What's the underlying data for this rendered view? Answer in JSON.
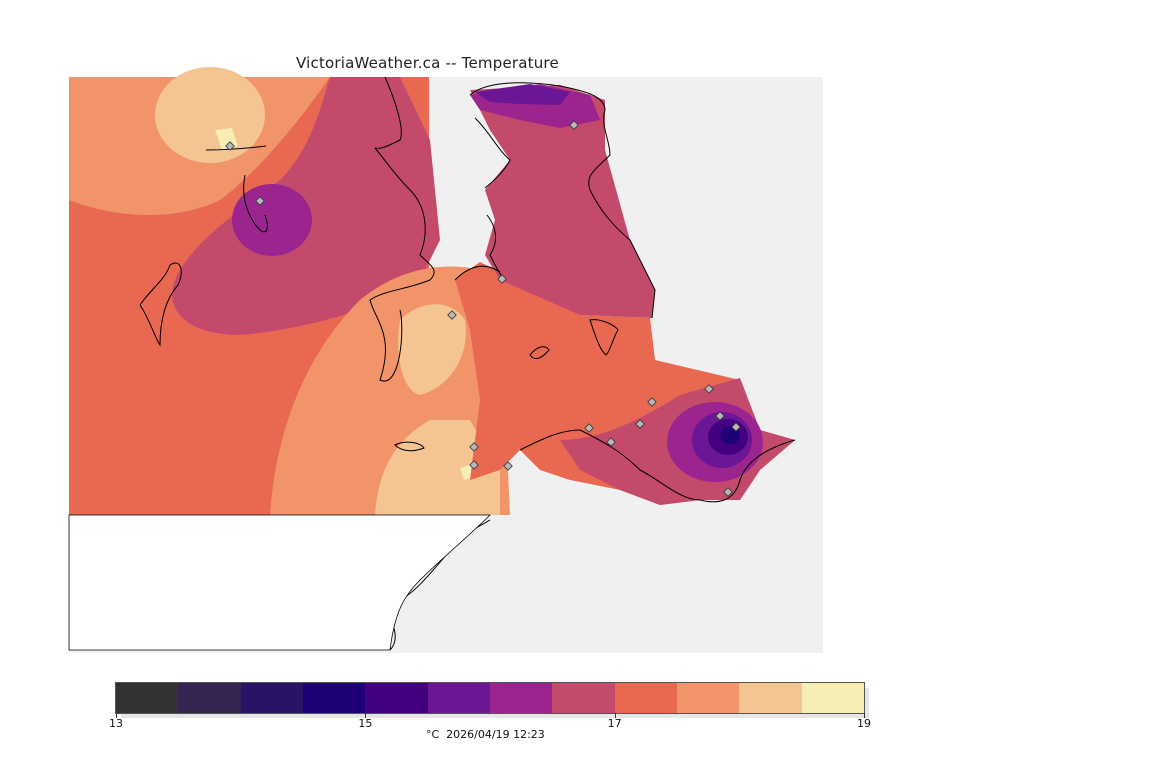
{
  "title": "VictoriaWeather.ca -- Temperature",
  "colorbar": {
    "colors": [
      "#333333",
      "#34244f",
      "#2a1266",
      "#1f0079",
      "#440081",
      "#6a1695",
      "#9b248f",
      "#c44a6c",
      "#e96852",
      "#f29469",
      "#f4c492",
      "#f6eeb4"
    ],
    "bin_edges": [
      13,
      13.5,
      14,
      14.5,
      15,
      15.5,
      16,
      16.5,
      17,
      17.5,
      18,
      18.5,
      19
    ],
    "ticks": [
      "13",
      "15",
      "17",
      "19"
    ],
    "caption": "°C  2026/04/19 12:23"
  },
  "map": {
    "land_color": "#ffffff",
    "water_color": "#f0f0f0",
    "coastline_color": "#000000",
    "station_marker_color": "#b8b8b8",
    "station_count": 16
  }
}
